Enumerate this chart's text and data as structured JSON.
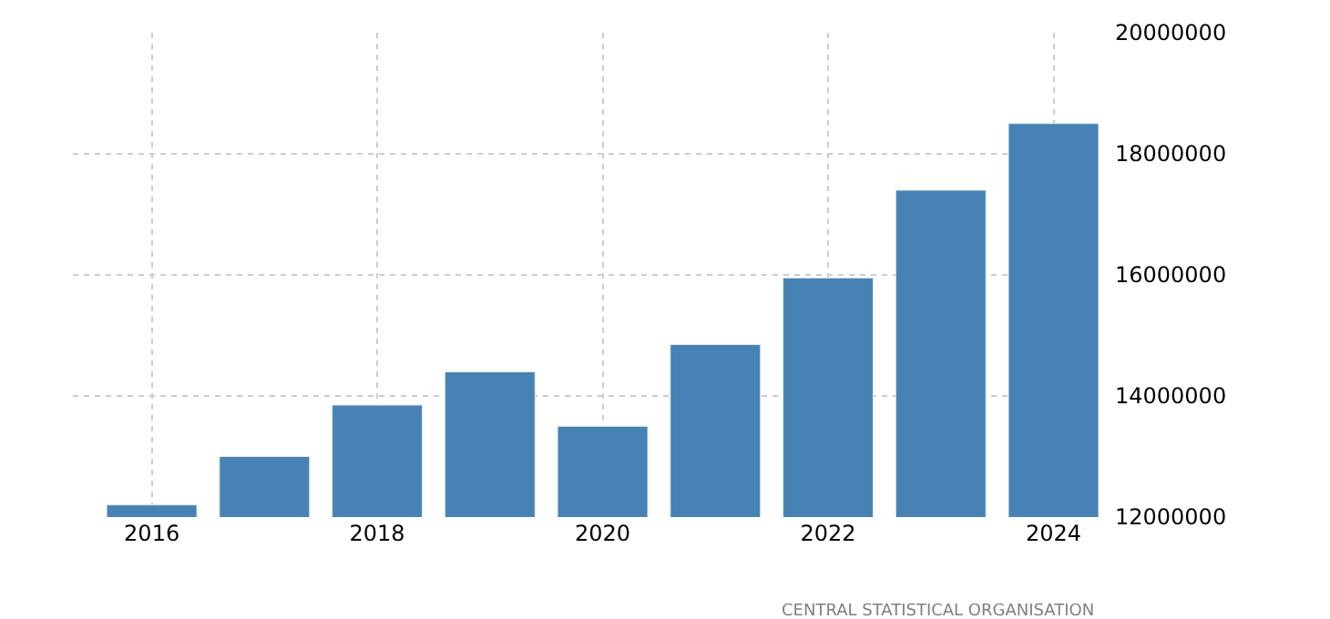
{
  "chart_data": {
    "type": "bar",
    "x": [
      2016,
      2017,
      2018,
      2019,
      2020,
      2021,
      2022,
      2023,
      2024
    ],
    "values": [
      12200000,
      13000000,
      13850000,
      14400000,
      13500000,
      14850000,
      15950000,
      17400000,
      18500000
    ],
    "color": "#4682b4",
    "xlim": [
      2015.3,
      2024.4
    ],
    "xticks": [
      2016,
      2018,
      2020,
      2022,
      2024
    ],
    "ylim": [
      12000000,
      20000000
    ],
    "yticks": [
      12000000,
      14000000,
      16000000,
      18000000,
      20000000
    ],
    "grid": true,
    "annotations": [
      "CENTRAL STATISTICAL ORGANISATION"
    ]
  }
}
